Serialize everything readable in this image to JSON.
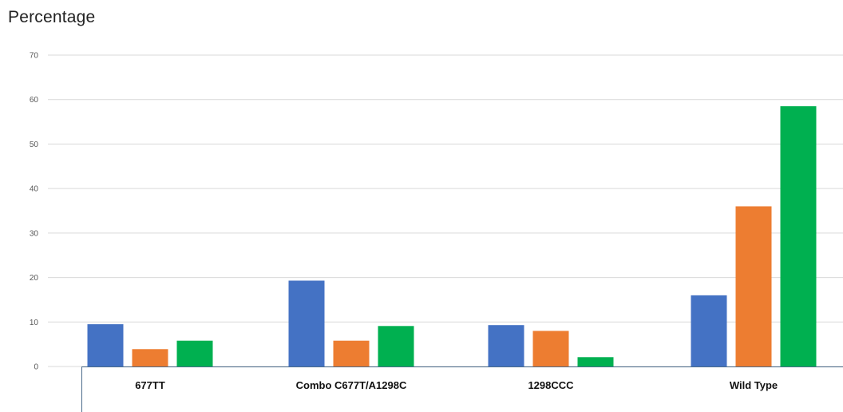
{
  "chart_data": {
    "type": "bar",
    "title": "Percentage",
    "categories": [
      "677TT",
      "Combo C677T/A1298C",
      "1298CCC",
      "Wild Type"
    ],
    "series": [
      {
        "color": "#4472C4",
        "values": [
          9.5,
          19.3,
          9.3,
          16.0
        ]
      },
      {
        "color": "#ED7D31",
        "values": [
          3.9,
          5.8,
          8.0,
          36.0
        ]
      },
      {
        "color": "#00B050",
        "values": [
          5.8,
          9.1,
          2.1,
          58.5
        ]
      }
    ],
    "y_ticks": [
      "0",
      "10",
      "20",
      "30",
      "40",
      "50",
      "60",
      "70"
    ],
    "ylim": [
      0,
      70
    ],
    "grid": true,
    "legend": "none"
  }
}
